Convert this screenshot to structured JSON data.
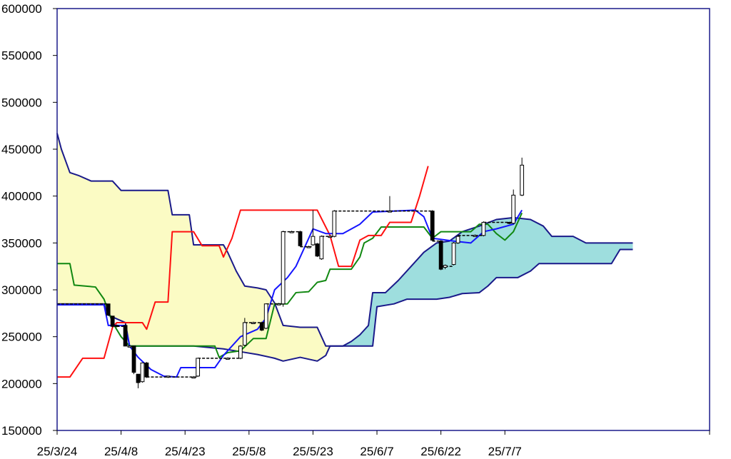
{
  "chart_data": {
    "type": "line",
    "subtype": "ichimoku-candlestick",
    "title": "",
    "xlabel": "",
    "ylabel": "",
    "ylim": [
      150000,
      600000
    ],
    "yticks": [
      150000,
      200000,
      250000,
      300000,
      350000,
      400000,
      450000,
      500000,
      550000,
      600000
    ],
    "ytick_labels": [
      "150000",
      "200000",
      "250000",
      "300000",
      "350000",
      "400000",
      "450000",
      "500000",
      "550000",
      "600000"
    ],
    "x_labels": [
      "25/3/24",
      "25/4/8",
      "25/4/23",
      "25/5/8",
      "25/5/23",
      "25/6/7",
      "25/6/22",
      "25/7/7"
    ],
    "x_start": "25/3/24",
    "x_end": "25/8/24",
    "grid": false,
    "legend": "none",
    "colors": {
      "tenkan": "#1515ff",
      "kijun": "#ff1010",
      "chikou": "#118811",
      "span_line": "#1a1a8a",
      "kumo_bullish": "#9edede",
      "kumo_bearish": "#fbfbc4",
      "candle_up": "#ffffff",
      "candle_down": "#000000"
    },
    "series": [
      {
        "role": "span_a",
        "points": [
          [
            "25/3/24",
            285000
          ],
          [
            "25/4/4",
            285000
          ],
          [
            "25/4/5",
            273000
          ],
          [
            "25/4/9",
            265000
          ],
          [
            "25/4/10",
            240000
          ],
          [
            "25/4/25",
            240000
          ],
          [
            "25/5/2",
            237000
          ],
          [
            "25/5/6",
            234000
          ],
          [
            "25/5/10",
            231000
          ],
          [
            "25/5/14",
            227000
          ],
          [
            "25/5/16",
            224000
          ],
          [
            "25/5/20",
            228000
          ],
          [
            "25/5/24",
            224000
          ],
          [
            "25/5/26",
            230000
          ],
          [
            "25/5/27",
            240000
          ],
          [
            "25/5/30",
            240000
          ],
          [
            "25/6/1",
            245000
          ],
          [
            "25/6/3",
            252000
          ],
          [
            "25/6/5",
            262000
          ],
          [
            "25/6/6",
            297000
          ],
          [
            "25/6/9",
            297000
          ],
          [
            "25/6/12",
            310000
          ],
          [
            "25/6/15",
            325000
          ],
          [
            "25/6/18",
            340000
          ],
          [
            "25/6/21",
            350000
          ],
          [
            "25/6/24",
            352000
          ],
          [
            "25/6/27",
            362000
          ],
          [
            "25/7/1",
            368000
          ],
          [
            "25/7/5",
            375000
          ],
          [
            "25/7/9",
            377000
          ],
          [
            "25/7/13",
            375000
          ],
          [
            "25/7/16",
            368000
          ],
          [
            "25/7/18",
            357000
          ],
          [
            "25/7/23",
            357000
          ],
          [
            "25/7/26",
            350000
          ],
          [
            "25/8/4",
            350000
          ],
          [
            "25/8/6",
            350000
          ]
        ]
      },
      {
        "role": "span_b",
        "points": [
          [
            "25/3/24",
            467000
          ],
          [
            "25/3/25",
            450000
          ],
          [
            "25/3/27",
            425000
          ],
          [
            "25/3/29",
            422000
          ],
          [
            "25/4/1",
            416000
          ],
          [
            "25/4/6",
            416000
          ],
          [
            "25/4/8",
            406000
          ],
          [
            "25/4/19",
            406000
          ],
          [
            "25/4/20",
            380000
          ],
          [
            "25/4/24",
            380000
          ],
          [
            "25/4/25",
            348000
          ],
          [
            "25/5/2",
            348000
          ],
          [
            "25/5/3",
            340000
          ],
          [
            "25/5/5",
            320000
          ],
          [
            "25/5/7",
            304000
          ],
          [
            "25/5/10",
            302000
          ],
          [
            "25/5/12",
            300000
          ],
          [
            "25/5/14",
            286000
          ],
          [
            "25/5/16",
            262000
          ],
          [
            "25/5/20",
            260000
          ],
          [
            "25/5/24",
            260000
          ],
          [
            "25/5/26",
            240000
          ],
          [
            "25/5/30",
            240000
          ],
          [
            "25/6/6",
            240000
          ],
          [
            "25/6/7",
            282000
          ],
          [
            "25/6/11",
            285000
          ],
          [
            "25/6/14",
            290000
          ],
          [
            "25/6/21",
            290000
          ],
          [
            "25/6/24",
            292000
          ],
          [
            "25/6/27",
            296000
          ],
          [
            "25/7/1",
            297000
          ],
          [
            "25/7/3",
            304000
          ],
          [
            "25/7/5",
            313000
          ],
          [
            "25/7/10",
            313000
          ],
          [
            "25/7/13",
            320000
          ],
          [
            "25/7/15",
            328000
          ],
          [
            "25/8/1",
            328000
          ],
          [
            "25/8/3",
            343000
          ],
          [
            "25/8/6",
            343000
          ]
        ]
      },
      {
        "role": "tenkan",
        "points": [
          [
            "25/3/24",
            284000
          ],
          [
            "25/4/4",
            284000
          ],
          [
            "25/4/5",
            262000
          ],
          [
            "25/4/9",
            262000
          ],
          [
            "25/4/10",
            240000
          ],
          [
            "25/4/12",
            228000
          ],
          [
            "25/4/15",
            215000
          ],
          [
            "25/4/18",
            208000
          ],
          [
            "25/4/21",
            207000
          ],
          [
            "25/4/22",
            217000
          ],
          [
            "25/4/30",
            217000
          ],
          [
            "25/5/2",
            230000
          ],
          [
            "25/5/6",
            250000
          ],
          [
            "25/5/10",
            258000
          ],
          [
            "25/5/12",
            270000
          ],
          [
            "25/5/14",
            300000
          ],
          [
            "25/5/17",
            313000
          ],
          [
            "25/5/19",
            325000
          ],
          [
            "25/5/21",
            345000
          ],
          [
            "25/5/23",
            365000
          ],
          [
            "25/5/26",
            360000
          ],
          [
            "25/5/30",
            360000
          ],
          [
            "25/6/3",
            370000
          ],
          [
            "25/6/6",
            383000
          ],
          [
            "25/6/16",
            385000
          ],
          [
            "25/6/18",
            378000
          ],
          [
            "25/6/20",
            355000
          ],
          [
            "25/6/25",
            352000
          ],
          [
            "25/6/29",
            350000
          ],
          [
            "25/7/2",
            362000
          ],
          [
            "25/7/5",
            365000
          ],
          [
            "25/7/9",
            370000
          ],
          [
            "25/7/11",
            385000
          ]
        ]
      },
      {
        "role": "kijun",
        "points": [
          [
            "25/3/24",
            207000
          ],
          [
            "25/3/27",
            207000
          ],
          [
            "25/3/30",
            227000
          ],
          [
            "25/4/4",
            227000
          ],
          [
            "25/4/6",
            260000
          ],
          [
            "25/4/7",
            265000
          ],
          [
            "25/4/13",
            265000
          ],
          [
            "25/4/14",
            258000
          ],
          [
            "25/4/16",
            287000
          ],
          [
            "25/4/19",
            287000
          ],
          [
            "25/4/20",
            362000
          ],
          [
            "25/4/25",
            362000
          ],
          [
            "25/4/27",
            347000
          ],
          [
            "25/5/1",
            347000
          ],
          [
            "25/5/2",
            335000
          ],
          [
            "25/5/4",
            355000
          ],
          [
            "25/5/6",
            385000
          ],
          [
            "25/5/24",
            385000
          ],
          [
            "25/5/27",
            358000
          ],
          [
            "25/5/29",
            325000
          ],
          [
            "25/6/1",
            325000
          ],
          [
            "25/6/3",
            353000
          ],
          [
            "25/6/5",
            358000
          ],
          [
            "25/6/8",
            358000
          ],
          [
            "25/6/10",
            372000
          ],
          [
            "25/6/15",
            372000
          ],
          [
            "25/6/17",
            400000
          ],
          [
            "25/6/19",
            432000
          ]
        ]
      },
      {
        "role": "chikou",
        "points": [
          [
            "25/3/24",
            328000
          ],
          [
            "25/3/27",
            328000
          ],
          [
            "25/3/28",
            305000
          ],
          [
            "25/4/2",
            303000
          ],
          [
            "25/4/4",
            290000
          ],
          [
            "25/4/6",
            265000
          ],
          [
            "25/4/8",
            250000
          ],
          [
            "25/4/10",
            240000
          ],
          [
            "25/4/30",
            240000
          ],
          [
            "25/5/1",
            228000
          ],
          [
            "25/5/3",
            233000
          ],
          [
            "25/5/6",
            235000
          ],
          [
            "25/5/9",
            248000
          ],
          [
            "25/5/12",
            248000
          ],
          [
            "25/5/14",
            285000
          ],
          [
            "25/5/17",
            285000
          ],
          [
            "25/5/19",
            297000
          ],
          [
            "25/5/22",
            298000
          ],
          [
            "25/5/24",
            308000
          ],
          [
            "25/5/26",
            310000
          ],
          [
            "25/5/27",
            322000
          ],
          [
            "25/6/1",
            322000
          ],
          [
            "25/6/3",
            335000
          ],
          [
            "25/6/4",
            350000
          ],
          [
            "25/6/6",
            355000
          ],
          [
            "25/6/8",
            367000
          ],
          [
            "25/6/18",
            367000
          ],
          [
            "25/6/20",
            355000
          ],
          [
            "25/6/22",
            362000
          ],
          [
            "25/6/29",
            362000
          ],
          [
            "25/7/1",
            370000
          ],
          [
            "25/7/3",
            370000
          ],
          [
            "25/7/5",
            360000
          ],
          [
            "25/7/7",
            353000
          ],
          [
            "25/7/9",
            362000
          ],
          [
            "25/7/11",
            382000
          ]
        ]
      }
    ],
    "candles": [
      {
        "date": "25/4/5",
        "open": 285000,
        "close": 273000,
        "high": 285000,
        "low": 273000
      },
      {
        "date": "25/4/6",
        "open": 272000,
        "close": 261000,
        "high": 272000,
        "low": 260000
      },
      {
        "date": "25/4/7",
        "open": 262000,
        "close": 261000,
        "high": 263000,
        "low": 260000
      },
      {
        "date": "25/4/9",
        "open": 262000,
        "close": 240000,
        "high": 263000,
        "low": 240000
      },
      {
        "date": "25/4/10",
        "open": 240000,
        "close": 240000,
        "high": 241000,
        "low": 239000
      },
      {
        "date": "25/4/11",
        "open": 240000,
        "close": 212000,
        "high": 240000,
        "low": 210000
      },
      {
        "date": "25/4/12",
        "open": 210000,
        "close": 201000,
        "high": 210000,
        "low": 195000
      },
      {
        "date": "25/4/13",
        "open": 202000,
        "close": 222000,
        "high": 222000,
        "low": 201000
      },
      {
        "date": "25/4/14",
        "open": 222000,
        "close": 207000,
        "high": 223000,
        "low": 206000
      },
      {
        "date": "25/4/19",
        "open": 207000,
        "close": 208000,
        "high": 208000,
        "low": 206000
      },
      {
        "date": "25/4/25",
        "open": 207000,
        "close": 207000,
        "high": 208000,
        "low": 206000
      },
      {
        "date": "25/4/26",
        "open": 208000,
        "close": 227000,
        "high": 227000,
        "low": 207000
      },
      {
        "date": "25/5/3",
        "open": 227000,
        "close": 227000,
        "high": 228000,
        "low": 226000
      },
      {
        "date": "25/5/6",
        "open": 227000,
        "close": 240000,
        "high": 241000,
        "low": 226000
      },
      {
        "date": "25/5/7",
        "open": 241000,
        "close": 265000,
        "high": 270000,
        "low": 240000
      },
      {
        "date": "25/5/9",
        "open": 265000,
        "close": 265000,
        "high": 266000,
        "low": 264000
      },
      {
        "date": "25/5/11",
        "open": 265000,
        "close": 257000,
        "high": 266000,
        "low": 256000
      },
      {
        "date": "25/5/12",
        "open": 259000,
        "close": 285000,
        "high": 285000,
        "low": 258000
      },
      {
        "date": "25/5/15",
        "open": 285000,
        "close": 285000,
        "high": 286000,
        "low": 284000
      },
      {
        "date": "25/5/16",
        "open": 285000,
        "close": 362000,
        "high": 363000,
        "low": 282000
      },
      {
        "date": "25/5/18",
        "open": 362000,
        "close": 362000,
        "high": 363000,
        "low": 361000
      },
      {
        "date": "25/5/20",
        "open": 362000,
        "close": 347000,
        "high": 363000,
        "low": 346000
      },
      {
        "date": "25/5/22",
        "open": 346000,
        "close": 346000,
        "high": 347000,
        "low": 345000
      },
      {
        "date": "25/5/23",
        "open": 348000,
        "close": 357000,
        "high": 385000,
        "low": 347000
      },
      {
        "date": "25/5/24",
        "open": 349000,
        "close": 336000,
        "high": 350000,
        "low": 335000
      },
      {
        "date": "25/5/25",
        "open": 333000,
        "close": 357000,
        "high": 358000,
        "low": 332000
      },
      {
        "date": "25/5/27",
        "open": 357000,
        "close": 357000,
        "high": 358000,
        "low": 356000
      },
      {
        "date": "25/5/28",
        "open": 357000,
        "close": 384000,
        "high": 385000,
        "low": 356000
      },
      {
        "date": "25/6/10",
        "open": 384000,
        "close": 384000,
        "high": 400000,
        "low": 383000
      },
      {
        "date": "25/6/20",
        "open": 384000,
        "close": 353000,
        "high": 385000,
        "low": 352000
      },
      {
        "date": "25/6/22",
        "open": 352000,
        "close": 322000,
        "high": 353000,
        "low": 321000
      },
      {
        "date": "25/6/23",
        "open": 324000,
        "close": 326000,
        "high": 327000,
        "low": 322000
      },
      {
        "date": "25/6/25",
        "open": 327000,
        "close": 350000,
        "high": 351000,
        "low": 326000
      },
      {
        "date": "25/6/26",
        "open": 350000,
        "close": 357000,
        "high": 358000,
        "low": 349000
      },
      {
        "date": "25/6/30",
        "open": 358000,
        "close": 358000,
        "high": 359000,
        "low": 357000
      },
      {
        "date": "25/7/2",
        "open": 358000,
        "close": 372000,
        "high": 373000,
        "low": 357000
      },
      {
        "date": "25/7/8",
        "open": 372000,
        "close": 371000,
        "high": 372000,
        "low": 370000
      },
      {
        "date": "25/7/9",
        "open": 371000,
        "close": 401000,
        "high": 407000,
        "low": 370000
      },
      {
        "date": "25/7/11",
        "open": 401000,
        "close": 433000,
        "high": 441000,
        "low": 400000
      }
    ],
    "connectors": [
      [
        "25/3/24",
        "25/4/5",
        285000
      ],
      [
        "25/4/7",
        "25/4/9",
        261000
      ],
      [
        "25/4/14",
        "25/4/26",
        207000
      ],
      [
        "25/4/26",
        "25/5/6",
        227000
      ],
      [
        "25/5/7",
        "25/5/12",
        265000
      ],
      [
        "25/5/12",
        "25/5/16",
        285000
      ],
      [
        "25/5/16",
        "25/5/20",
        362000
      ],
      [
        "25/5/20",
        "25/5/23",
        346000
      ],
      [
        "25/5/25",
        "25/5/28",
        357000
      ],
      [
        "25/5/28",
        "25/6/20",
        384000
      ],
      [
        "25/6/20",
        "25/6/22",
        352000
      ],
      [
        "25/6/22",
        "25/6/25",
        325000
      ],
      [
        "25/6/26",
        "25/7/2",
        358000
      ],
      [
        "25/7/2",
        "25/7/9",
        372000
      ]
    ]
  }
}
